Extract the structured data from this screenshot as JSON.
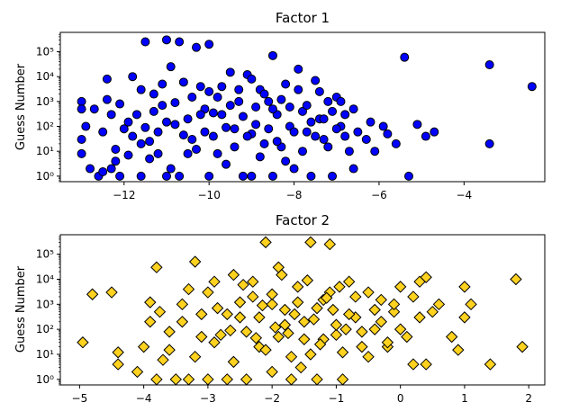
{
  "chart_data": [
    {
      "type": "scatter",
      "title": "Factor 1",
      "xlabel": "",
      "ylabel": "Guess Number",
      "yscale": "log",
      "xlim": [
        -13.5,
        -2.1
      ],
      "ylim": [
        0.6,
        600000
      ],
      "xticks": [
        -12,
        -10,
        -8,
        -6,
        -4
      ],
      "xtick_labels": [
        "−12",
        "−10",
        "−8",
        "−6",
        "−4"
      ],
      "yticks": [
        1,
        10,
        100,
        1000,
        10000,
        100000
      ],
      "ytick_labels": [
        "10⁰",
        "10¹",
        "10²",
        "10³",
        "10⁴",
        "10⁵"
      ],
      "marker": "circle",
      "color": "#0000ff",
      "edgecolor": "#000000",
      "series": [
        {
          "points": [
            [
              -13.0,
              1000
            ],
            [
              -13.0,
              500
            ],
            [
              -12.9,
              100
            ],
            [
              -13.0,
              30
            ],
            [
              -13.0,
              8
            ],
            [
              -12.6,
              1
            ],
            [
              -12.5,
              1.5
            ],
            [
              -12.5,
              60
            ],
            [
              -12.3,
              2
            ],
            [
              -12.3,
              300
            ],
            [
              -12.2,
              4
            ],
            [
              -12.1,
              1
            ],
            [
              -12.4,
              8000
            ],
            [
              -12.2,
              12
            ],
            [
              -12.1,
              800
            ],
            [
              -11.9,
              150
            ],
            [
              -11.8,
              40
            ],
            [
              -11.8,
              10000
            ],
            [
              -11.6,
              20
            ],
            [
              -11.5,
              90
            ],
            [
              -11.4,
              5
            ],
            [
              -11.6,
              1
            ],
            [
              -11.5,
              250000
            ],
            [
              -11.3,
              2000
            ],
            [
              -11.2,
              60
            ],
            [
              -11.1,
              700
            ],
            [
              -11.0,
              300000
            ],
            [
              -11.0,
              1
            ],
            [
              -10.8,
              120
            ],
            [
              -10.7,
              250000
            ],
            [
              -10.7,
              1
            ],
            [
              -10.9,
              25000
            ],
            [
              -10.5,
              8
            ],
            [
              -10.4,
              30
            ],
            [
              -10.3,
              150000
            ],
            [
              -10.2,
              4000
            ],
            [
              -10.1,
              500
            ],
            [
              -10.0,
              1
            ],
            [
              -9.9,
              40
            ],
            [
              -10.0,
              200000
            ],
            [
              -9.8,
              1500
            ],
            [
              -9.7,
              300
            ],
            [
              -9.6,
              3
            ],
            [
              -9.5,
              15000
            ],
            [
              -9.4,
              80
            ],
            [
              -9.3,
              1000
            ],
            [
              -9.2,
              1
            ],
            [
              -9.1,
              12000
            ],
            [
              -9.0,
              50
            ],
            [
              -9.0,
              1
            ],
            [
              -8.9,
              600
            ],
            [
              -8.8,
              3000
            ],
            [
              -8.7,
              20
            ],
            [
              -8.6,
              1000
            ],
            [
              -8.5,
              1
            ],
            [
              -8.5,
              70000
            ],
            [
              -8.4,
              300
            ],
            [
              -8.3,
              15
            ],
            [
              -8.2,
              5000
            ],
            [
              -8.1,
              100
            ],
            [
              -8.0,
              2
            ],
            [
              -7.9,
              20000
            ],
            [
              -7.8,
              400
            ],
            [
              -7.7,
              60
            ],
            [
              -7.6,
              1
            ],
            [
              -7.5,
              7000
            ],
            [
              -7.4,
              200
            ],
            [
              -7.3,
              30
            ],
            [
              -7.2,
              1000
            ],
            [
              -7.1,
              1
            ],
            [
              -7.0,
              1500
            ],
            [
              -6.9,
              100
            ],
            [
              -6.8,
              40
            ],
            [
              -6.7,
              10
            ],
            [
              -6.6,
              500
            ],
            [
              -6.5,
              60
            ],
            [
              -6.3,
              30
            ],
            [
              -6.2,
              150
            ],
            [
              -6.1,
              10
            ],
            [
              -5.9,
              100
            ],
            [
              -5.8,
              50
            ],
            [
              -5.6,
              20
            ],
            [
              -5.4,
              60000
            ],
            [
              -5.3,
              1
            ],
            [
              -5.1,
              120
            ],
            [
              -4.9,
              40
            ],
            [
              -4.7,
              60
            ],
            [
              -3.4,
              30000
            ],
            [
              -3.4,
              20
            ],
            [
              -2.4,
              4000
            ],
            [
              -12.8,
              2
            ],
            [
              -12.7,
              500
            ],
            [
              -12.4,
              1200
            ],
            [
              -12.0,
              80
            ],
            [
              -11.9,
              7
            ],
            [
              -11.7,
              300
            ],
            [
              -11.6,
              3000
            ],
            [
              -11.4,
              25
            ],
            [
              -11.3,
              400
            ],
            [
              -11.2,
              8
            ],
            [
              -11.1,
              5000
            ],
            [
              -11.0,
              150
            ],
            [
              -10.9,
              2
            ],
            [
              -10.8,
              900
            ],
            [
              -10.6,
              45
            ],
            [
              -10.6,
              6000
            ],
            [
              -10.5,
              200
            ],
            [
              -10.4,
              1500
            ],
            [
              -10.3,
              12
            ],
            [
              -10.2,
              300
            ],
            [
              -10.1,
              60
            ],
            [
              -10.0,
              2500
            ],
            [
              -9.9,
              350
            ],
            [
              -9.8,
              8
            ],
            [
              -9.7,
              4000
            ],
            [
              -9.6,
              90
            ],
            [
              -9.5,
              700
            ],
            [
              -9.4,
              15
            ],
            [
              -9.3,
              3000
            ],
            [
              -9.2,
              250
            ],
            [
              -9.1,
              40
            ],
            [
              -9.0,
              8000
            ],
            [
              -8.9,
              120
            ],
            [
              -8.8,
              6
            ],
            [
              -8.7,
              2000
            ],
            [
              -8.6,
              80
            ],
            [
              -8.5,
              500
            ],
            [
              -8.4,
              25
            ],
            [
              -8.3,
              1200
            ],
            [
              -8.2,
              4
            ],
            [
              -8.1,
              600
            ],
            [
              -8.0,
              60
            ],
            [
              -7.9,
              3000
            ],
            [
              -7.8,
              10
            ],
            [
              -7.7,
              700
            ],
            [
              -7.6,
              150
            ],
            [
              -7.5,
              40
            ],
            [
              -7.4,
              2500
            ],
            [
              -7.3,
              200
            ],
            [
              -7.2,
              15
            ],
            [
              -7.1,
              400
            ],
            [
              -7.0,
              80
            ],
            [
              -6.9,
              1000
            ],
            [
              -6.8,
              300
            ],
            [
              -6.6,
              2
            ]
          ]
        }
      ]
    },
    {
      "type": "scatter",
      "title": "Factor 2",
      "xlabel": "",
      "ylabel": "Guess Number",
      "yscale": "log",
      "xlim": [
        -5.3,
        2.25
      ],
      "ylim": [
        0.6,
        600000
      ],
      "xticks": [
        -5,
        -4,
        -3,
        -2,
        -1,
        0,
        1,
        2
      ],
      "xtick_labels": [
        "−5",
        "−4",
        "−3",
        "−2",
        "−1",
        "0",
        "1",
        "2"
      ],
      "yticks": [
        1,
        10,
        100,
        1000,
        10000,
        100000
      ],
      "ytick_labels": [
        "10⁰",
        "10¹",
        "10²",
        "10³",
        "10⁴",
        "10⁵"
      ],
      "marker": "diamond",
      "color": "#ffd21f",
      "edgecolor": "#000000",
      "series": [
        {
          "points": [
            [
              -4.95,
              30
            ],
            [
              -4.8,
              2500
            ],
            [
              -4.5,
              3000
            ],
            [
              -4.4,
              4
            ],
            [
              -4.4,
              12
            ],
            [
              -4.0,
              20
            ],
            [
              -3.9,
              200
            ],
            [
              -3.8,
              30000
            ],
            [
              -3.8,
              1
            ],
            [
              -3.7,
              6
            ],
            [
              -3.6,
              80
            ],
            [
              -3.5,
              1
            ],
            [
              -3.4,
              1000
            ],
            [
              -3.3,
              1
            ],
            [
              -3.2,
              50000
            ],
            [
              -3.1,
              400
            ],
            [
              -3.0,
              1
            ],
            [
              -2.9,
              8000
            ],
            [
              -2.8,
              60
            ],
            [
              -2.7,
              1
            ],
            [
              -2.6,
              15000
            ],
            [
              -2.5,
              300
            ],
            [
              -2.4,
              1
            ],
            [
              -2.3,
              2000
            ],
            [
              -2.2,
              20
            ],
            [
              -2.1,
              300000
            ],
            [
              -2.0,
              1000
            ],
            [
              -2.0,
              2
            ],
            [
              -1.9,
              30000
            ],
            [
              -1.8,
              150
            ],
            [
              -1.7,
              1
            ],
            [
              -1.6,
              5000
            ],
            [
              -1.5,
              40
            ],
            [
              -1.4,
              300000
            ],
            [
              -1.3,
              1
            ],
            [
              -1.2,
              1500
            ],
            [
              -1.1,
              250000
            ],
            [
              -1.0,
              60
            ],
            [
              -0.9,
              1
            ],
            [
              -0.8,
              8000
            ],
            [
              -0.7,
              300
            ],
            [
              -0.6,
              20
            ],
            [
              -0.5,
              3000
            ],
            [
              -0.4,
              100
            ],
            [
              -0.3,
              1500
            ],
            [
              -0.2,
              20
            ],
            [
              -0.1,
              500
            ],
            [
              0.0,
              5000
            ],
            [
              0.1,
              50
            ],
            [
              0.2,
              4
            ],
            [
              0.3,
              8000
            ],
            [
              0.4,
              12000
            ],
            [
              0.4,
              4
            ],
            [
              0.5,
              500
            ],
            [
              0.6,
              1000
            ],
            [
              0.8,
              50
            ],
            [
              0.9,
              15
            ],
            [
              1.0,
              5000
            ],
            [
              1.0,
              300
            ],
            [
              1.1,
              1000
            ],
            [
              1.4,
              4
            ],
            [
              1.8,
              10000
            ],
            [
              1.9,
              20
            ],
            [
              -4.1,
              2
            ],
            [
              -3.9,
              1200
            ],
            [
              -3.6,
              15
            ],
            [
              -3.4,
              200
            ],
            [
              -3.2,
              8
            ],
            [
              -3.0,
              3000
            ],
            [
              -2.9,
              30
            ],
            [
              -2.7,
              400
            ],
            [
              -2.6,
              5
            ],
            [
              -2.5,
              1200
            ],
            [
              -2.4,
              80
            ],
            [
              -2.3,
              8000
            ],
            [
              -2.2,
              300
            ],
            [
              -2.1,
              15
            ],
            [
              -2.0,
              2500
            ],
            [
              -1.9,
              50
            ],
            [
              -1.8,
              600
            ],
            [
              -1.7,
              8
            ],
            [
              -1.6,
              1200
            ],
            [
              -1.5,
              200
            ],
            [
              -1.4,
              10
            ],
            [
              -1.3,
              700
            ],
            [
              -1.2,
              40
            ],
            [
              -1.1,
              3000
            ],
            [
              -1.0,
              150
            ],
            [
              -0.9,
              12
            ],
            [
              -0.8,
              400
            ],
            [
              -0.7,
              2000
            ],
            [
              -0.6,
              80
            ],
            [
              -0.5,
              8
            ],
            [
              -0.4,
              600
            ],
            [
              -0.3,
              200
            ],
            [
              -0.2,
              30
            ],
            [
              -0.1,
              1000
            ],
            [
              0.0,
              100
            ],
            [
              0.2,
              2000
            ],
            [
              0.3,
              300
            ],
            [
              -3.75,
              500
            ],
            [
              -3.3,
              4000
            ],
            [
              -3.1,
              50
            ],
            [
              -2.85,
              700
            ],
            [
              -2.65,
              90
            ],
            [
              -2.45,
              6000
            ],
            [
              -2.25,
              45
            ],
            [
              -2.15,
              900
            ],
            [
              -1.95,
              120
            ],
            [
              -1.85,
              15000
            ],
            [
              -1.75,
              70
            ],
            [
              -1.65,
              400
            ],
            [
              -1.55,
              3
            ],
            [
              -1.45,
              9000
            ],
            [
              -1.35,
              250
            ],
            [
              -1.25,
              25
            ],
            [
              -1.15,
              1800
            ],
            [
              -1.05,
              600
            ],
            [
              -0.95,
              5000
            ],
            [
              -0.85,
              100
            ]
          ]
        }
      ]
    }
  ]
}
